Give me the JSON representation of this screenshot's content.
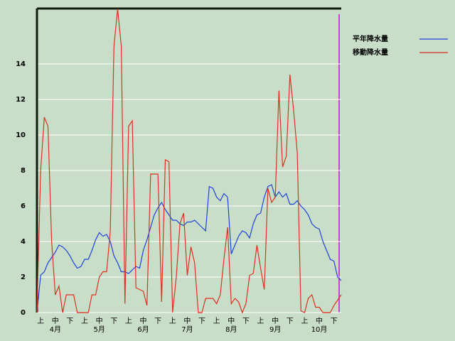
{
  "chart_data": {
    "type": "line",
    "categories": [
      null,
      "上",
      null,
      null,
      null,
      "中",
      null,
      null,
      null,
      "下",
      null,
      null,
      null,
      "上",
      null,
      null,
      null,
      "中",
      null,
      null,
      null,
      "下",
      null,
      null,
      null,
      "上",
      null,
      null,
      null,
      "中",
      null,
      null,
      null,
      "下",
      null,
      null,
      null,
      "上",
      null,
      null,
      null,
      "中",
      null,
      null,
      null,
      "下",
      null,
      null,
      null,
      "上",
      null,
      null,
      null,
      "中",
      null,
      null,
      null,
      "下",
      null,
      null,
      null,
      "上",
      null,
      null,
      null,
      "中",
      null,
      null,
      null,
      "下",
      null,
      null,
      null,
      "上",
      null,
      null,
      null,
      "中",
      null,
      null,
      null,
      "下",
      null,
      null
    ],
    "month_labels": [
      "4月",
      "5月",
      "6月",
      "7月",
      "8月",
      "9月",
      "10月"
    ],
    "series": [
      {
        "name": "平年降水量",
        "color": "#2040e0",
        "values": [
          0,
          2.1,
          2.3,
          2.8,
          3.1,
          3.4,
          3.8,
          3.7,
          3.5,
          3.2,
          2.8,
          2.5,
          2.6,
          3.0,
          3.0,
          3.5,
          4.1,
          4.5,
          4.3,
          4.4,
          4.0,
          3.2,
          2.8,
          2.3,
          2.3,
          2.2,
          2.4,
          2.6,
          2.5,
          3.5,
          4.1,
          4.8,
          5.5,
          5.9,
          6.2,
          5.8,
          5.5,
          5.2,
          5.2,
          5.0,
          4.9,
          5.1,
          5.1,
          5.2,
          5.0,
          4.8,
          4.6,
          7.1,
          7.0,
          6.5,
          6.3,
          6.7,
          6.5,
          3.3,
          3.8,
          4.3,
          4.6,
          4.5,
          4.2,
          5.0,
          5.5,
          5.6,
          6.5,
          7.1,
          7.2,
          6.5,
          6.8,
          6.5,
          6.7,
          6.1,
          6.1,
          6.3,
          6.0,
          5.8,
          5.5,
          5.0,
          4.8,
          4.7,
          4.0,
          3.5,
          3.0,
          2.9,
          2.0,
          1.8
        ]
      },
      {
        "name": "移動降水量",
        "color": "#e03020",
        "values": [
          0,
          8,
          11,
          10.5,
          4,
          1,
          1.5,
          0,
          1,
          1,
          1,
          0,
          0,
          0,
          0,
          1,
          1,
          2,
          2.3,
          2.3,
          4.6,
          15,
          17.1,
          15,
          0.5,
          10.5,
          10.8,
          1.4,
          1.3,
          1.2,
          0.4,
          7.8,
          7.8,
          7.8,
          0.6,
          8.6,
          8.5,
          0,
          2,
          5,
          5.6,
          2.1,
          3.7,
          2.8,
          0,
          0,
          0.8,
          0.8,
          0.8,
          0.5,
          1.0,
          3.0,
          4.8,
          0.5,
          0.8,
          0.6,
          0,
          0.5,
          2.1,
          2.2,
          3.8,
          2.5,
          1.3,
          7.0,
          6.2,
          6.5,
          12.5,
          8.2,
          8.8,
          13.4,
          11.4,
          9,
          0.1,
          0,
          0.8,
          1.0,
          0.3,
          0.3,
          0,
          0,
          0,
          0.4,
          0.7,
          1.0
        ]
      }
    ],
    "ylim": [
      0,
      17.12
    ],
    "yticks": [
      0,
      2,
      4,
      6,
      8,
      10,
      12,
      14
    ],
    "grid": true
  }
}
